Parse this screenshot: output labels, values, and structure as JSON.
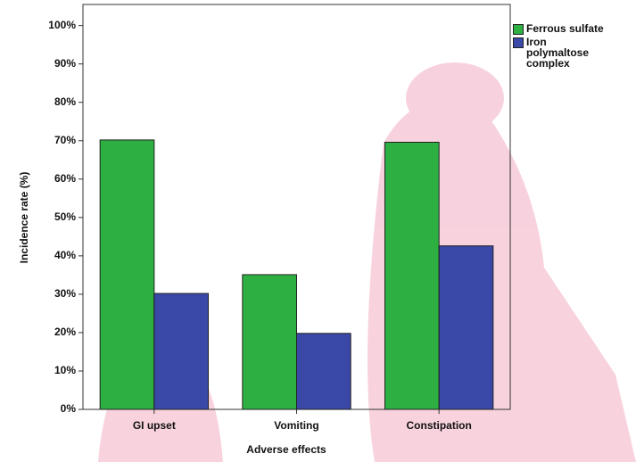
{
  "chart_data": {
    "type": "bar",
    "x_label": "Adverse effects",
    "y_label": "Incidence rate (%)",
    "categories": [
      "GI upset",
      "Vomiting",
      "Constipation"
    ],
    "series": [
      {
        "name": "Ferrous sulfate",
        "color": "#2eaf42",
        "values": [
          70.2,
          35.1,
          69.6
        ]
      },
      {
        "name": "Iron polymaltose complex",
        "color": "#3a48a8",
        "values": [
          30.2,
          19.8,
          42.6
        ]
      }
    ],
    "ylim": [
      0,
      105.5
    ],
    "yticks": [
      {
        "value": 0,
        "label": "0%"
      },
      {
        "value": 10,
        "label": "10%"
      },
      {
        "value": 20,
        "label": "20%"
      },
      {
        "value": 30,
        "label": "30%"
      },
      {
        "value": 40,
        "label": "40%"
      },
      {
        "value": 50,
        "label": "50%"
      },
      {
        "value": 60,
        "label": "60%"
      },
      {
        "value": 70,
        "label": "70%"
      },
      {
        "value": 80,
        "label": "80%"
      },
      {
        "value": 90,
        "label": "90%"
      },
      {
        "value": 100,
        "label": "100%"
      }
    ],
    "legend": "top-right"
  }
}
